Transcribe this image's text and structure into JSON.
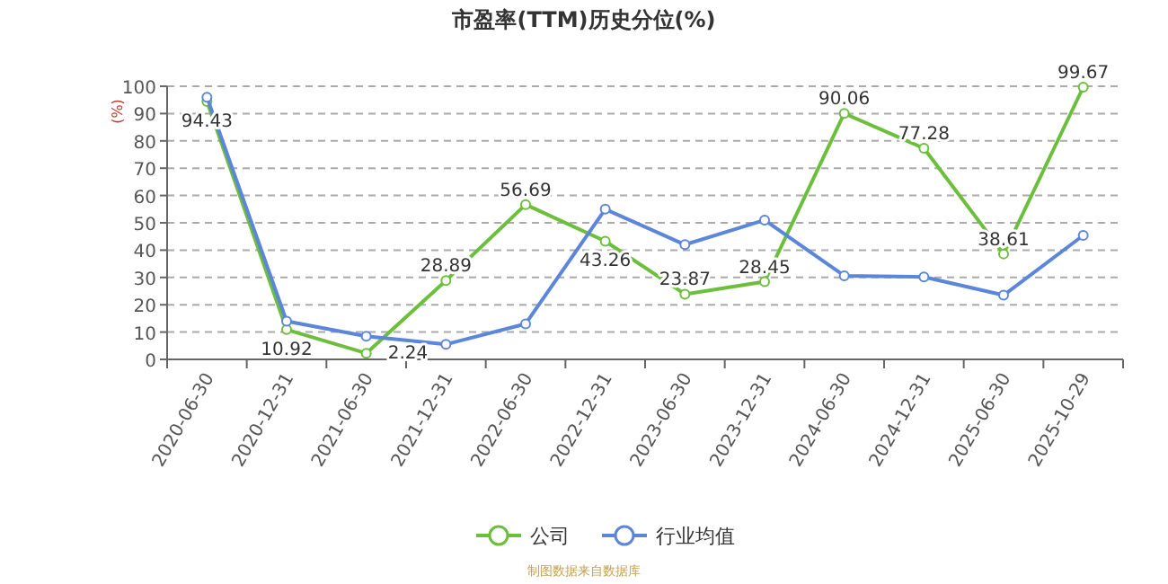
{
  "chart_data": {
    "type": "line",
    "title": "市盈率(TTM)历史分位(%)",
    "ylabel": "(%)",
    "categories": [
      "2020-06-30",
      "2020-12-31",
      "2021-06-30",
      "2021-12-31",
      "2022-06-30",
      "2022-12-31",
      "2023-06-30",
      "2023-12-31",
      "2024-06-30",
      "2024-12-31",
      "2025-06-30",
      "2025-10-29"
    ],
    "series": [
      {
        "name": "公司",
        "color": "#6cbf3c",
        "values": [
          94.43,
          10.92,
          2.24,
          28.89,
          56.69,
          43.26,
          23.87,
          28.45,
          90.06,
          77.28,
          38.61,
          99.67
        ],
        "value_labels": [
          "94.43",
          "10.92",
          "2.24",
          "28.89",
          "56.69",
          "43.26",
          "23.87",
          "28.45",
          "90.06",
          "77.28",
          "38.61",
          "99.67"
        ]
      },
      {
        "name": "行业均值",
        "color": "#5b86d9",
        "values": [
          96,
          14,
          8.5,
          5.5,
          13,
          55,
          42,
          51,
          30.6,
          30.2,
          23.5,
          45.4
        ]
      }
    ],
    "ylim": [
      0,
      100
    ],
    "yticks": [
      0,
      10,
      20,
      30,
      40,
      50,
      60,
      70,
      80,
      90,
      100
    ],
    "grid": "y",
    "legend": "bottom",
    "marker": "circle",
    "line_style": "solid",
    "annotations": [
      "制图数据来自数据库"
    ]
  }
}
